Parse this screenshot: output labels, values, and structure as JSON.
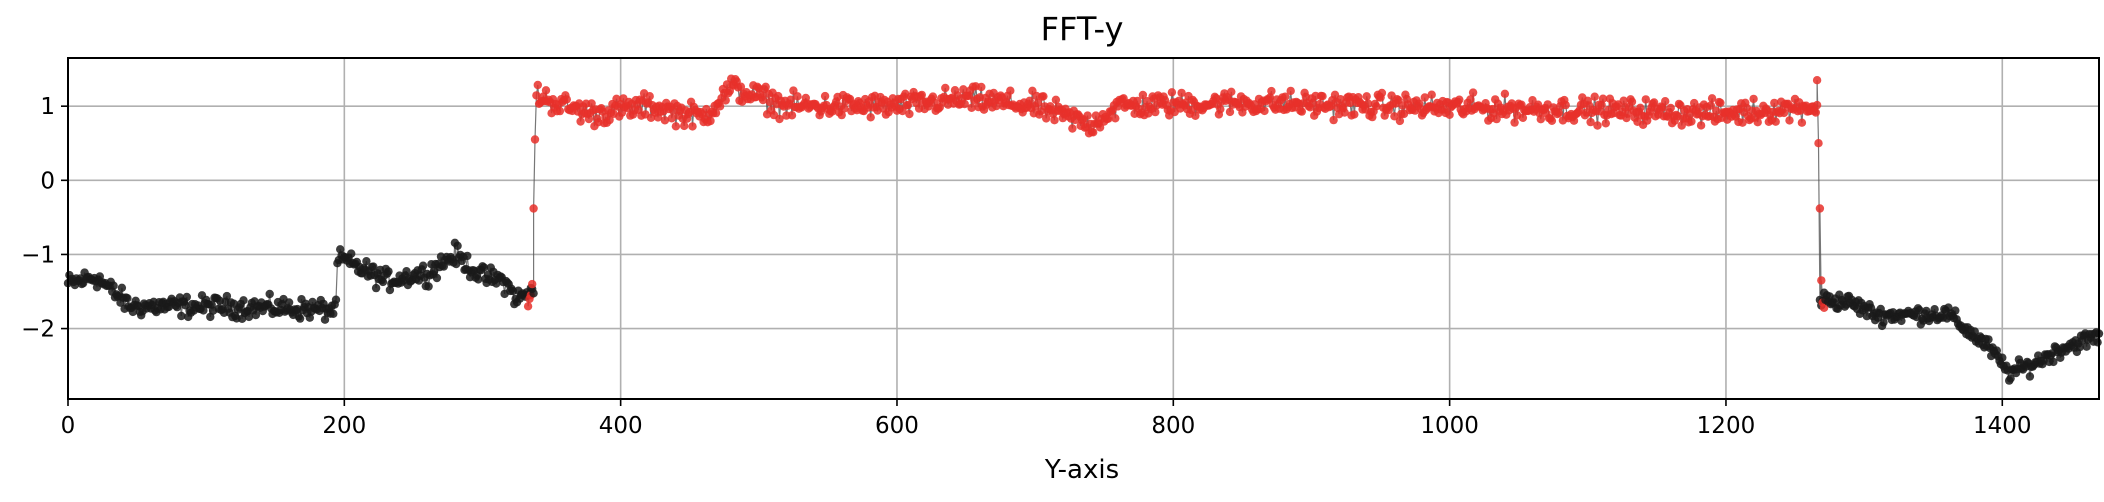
{
  "chart_data": {
    "type": "scatter",
    "title": "FFT-y",
    "xlabel": "Y-axis",
    "ylabel": "",
    "xlim": [
      0,
      1470
    ],
    "ylim": [
      -2.95,
      1.65
    ],
    "xticks": [
      0,
      200,
      400,
      600,
      800,
      1000,
      1200,
      1400
    ],
    "yticks": [
      1,
      0,
      -1,
      -2
    ],
    "xtick_labels": [
      "0",
      "200",
      "400",
      "600",
      "800",
      "1000",
      "1200",
      "1400"
    ],
    "ytick_labels": [
      "1",
      "0",
      "−1",
      "−2"
    ],
    "grid": true,
    "connected_line": true,
    "series": [
      {
        "color": "#1a1a1a",
        "segments": [
          {
            "x_start": 0,
            "x_end": 337,
            "anchors": [
              [
                0,
                -1.4
              ],
              [
                20,
                -1.3
              ],
              [
                45,
                -1.7
              ],
              [
                100,
                -1.7
              ],
              [
                150,
                -1.72
              ],
              [
                193,
                -1.75
              ],
              [
                196,
                -1.05
              ],
              [
                230,
                -1.35
              ],
              [
                260,
                -1.25
              ],
              [
                280,
                -1.0
              ],
              [
                300,
                -1.3
              ],
              [
                315,
                -1.35
              ],
              [
                325,
                -1.6
              ],
              [
                337,
                -1.5
              ]
            ],
            "noise": 0.11
          },
          {
            "x_start": 1268,
            "x_end": 1470,
            "anchors": [
              [
                1268,
                -1.6
              ],
              [
                1290,
                -1.65
              ],
              [
                1310,
                -1.82
              ],
              [
                1360,
                -1.8
              ],
              [
                1390,
                -2.25
              ],
              [
                1405,
                -2.6
              ],
              [
                1420,
                -2.5
              ],
              [
                1445,
                -2.25
              ],
              [
                1470,
                -2.1
              ]
            ],
            "noise": 0.09
          }
        ]
      },
      {
        "color": "#e8302a",
        "segments": [
          {
            "x_start": 339,
            "x_end": 1266,
            "anchors": [
              [
                339,
                1.15
              ],
              [
                360,
                1.0
              ],
              [
                380,
                0.9
              ],
              [
                420,
                1.0
              ],
              [
                460,
                0.85
              ],
              [
                480,
                1.25
              ],
              [
                520,
                1.0
              ],
              [
                600,
                1.0
              ],
              [
                650,
                1.1
              ],
              [
                700,
                1.0
              ],
              [
                740,
                0.75
              ],
              [
                760,
                1.0
              ],
              [
                850,
                1.05
              ],
              [
                950,
                1.0
              ],
              [
                1100,
                0.95
              ],
              [
                1200,
                0.9
              ],
              [
                1266,
                1.0
              ]
            ],
            "noise": 0.13
          },
          {
            "x_start": 333,
            "x_end": 339,
            "points": [
              [
                333,
                -1.7
              ],
              [
                334,
                -1.6
              ],
              [
                335,
                -1.55
              ],
              [
                336,
                -1.4
              ],
              [
                337,
                -0.38
              ],
              [
                338,
                0.55
              ]
            ],
            "noise": 0
          },
          {
            "x_start": 1266,
            "x_end": 1272,
            "points": [
              [
                1266,
                1.35
              ],
              [
                1267,
                0.5
              ],
              [
                1268,
                -0.38
              ],
              [
                1269,
                -1.35
              ],
              [
                1270,
                -1.65
              ],
              [
                1271,
                -1.72
              ]
            ],
            "noise": 0
          }
        ]
      }
    ]
  }
}
